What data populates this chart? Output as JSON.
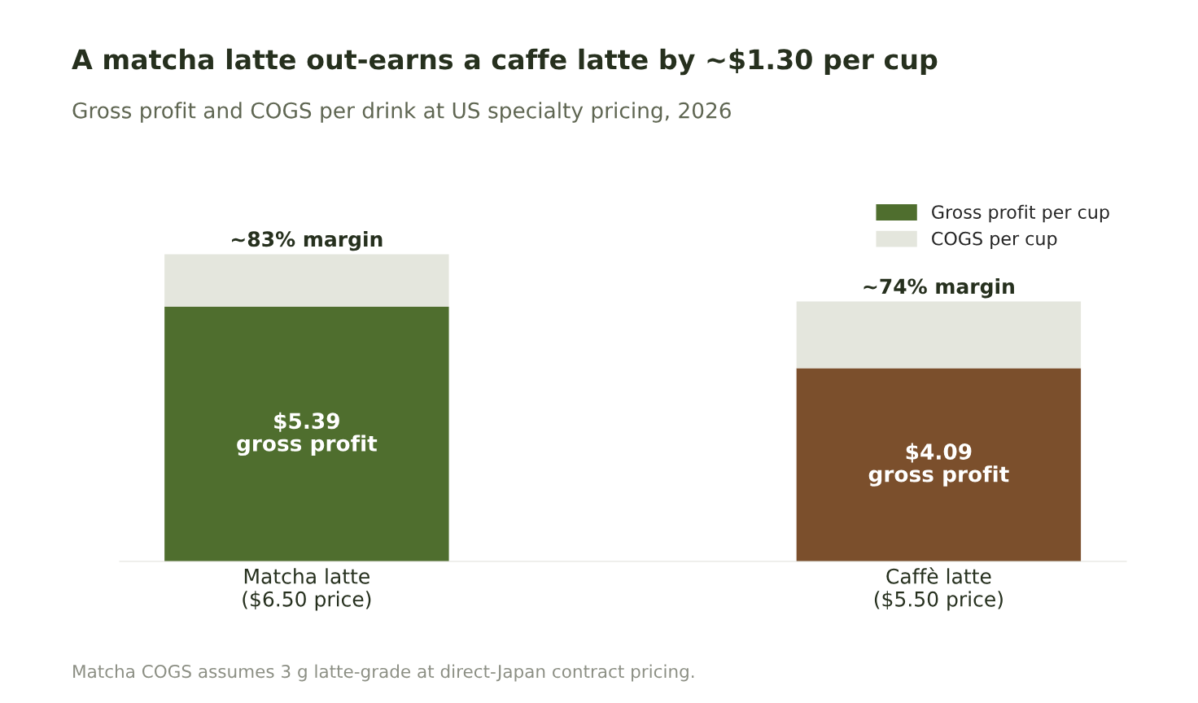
{
  "chart_data": {
    "type": "bar",
    "stacked": true,
    "title": "A matcha latte out-earns a caffe latte by ~$1.30 per cup",
    "subtitle": "Gross profit and COGS per drink at US specialty pricing, 2026",
    "categories": [
      "Matcha latte\n($6.50 price)",
      "Caffè latte\n($5.50 price)"
    ],
    "series": [
      {
        "name": "Gross profit per cup",
        "color": "#4f6e2e",
        "colors": [
          "#4f6e2e",
          "#7b4f2c"
        ],
        "values": [
          5.39,
          4.09
        ],
        "value_labels": [
          "$5.39\ngross profit",
          "$4.09\ngross profit"
        ]
      },
      {
        "name": "COGS per cup",
        "color": "#e4e6dd",
        "values": [
          1.11,
          1.41
        ]
      }
    ],
    "annotations": [
      {
        "text": "~83% margin",
        "x": "Matcha latte\n($6.50 price)",
        "y": 6.5
      },
      {
        "text": "~74% margin",
        "x": "Caffè latte\n($5.50 price)",
        "y": 5.5
      },
      "Matcha COGS assumes 3 g latte-grade at direct-Japan contract pricing."
    ],
    "legend": "top right",
    "grid": false
  }
}
